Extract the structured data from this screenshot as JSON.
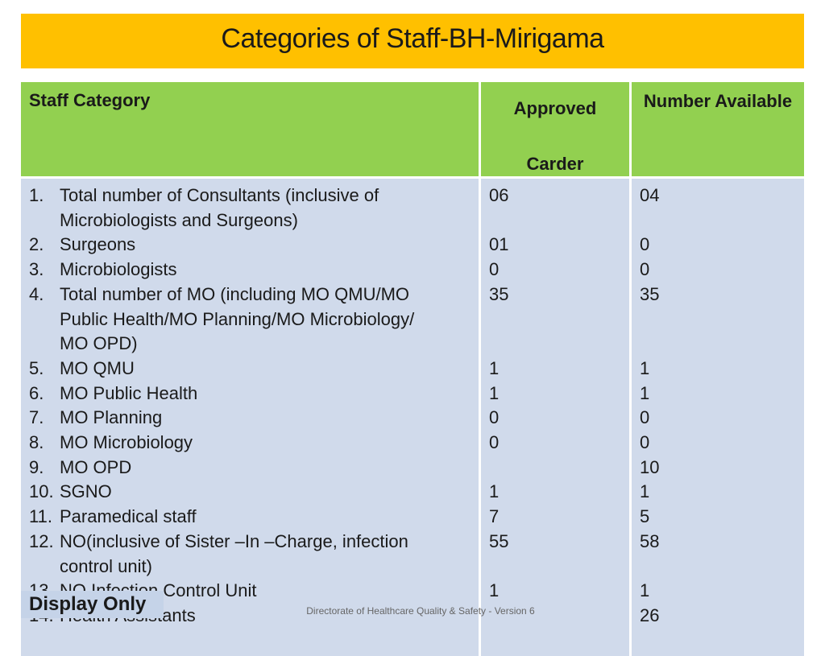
{
  "title": "Categories of Staff-BH-Mirigama",
  "table": {
    "headers": {
      "category": "Staff Category",
      "approved_line1": "Approved",
      "approved_line2": "Carder",
      "available": "Number Available"
    },
    "rows": [
      {
        "num": "1.",
        "lines": [
          "Total number of Consultants (inclusive of",
          "Microbiologists and Surgeons)"
        ],
        "approved": "06",
        "available": "04"
      },
      {
        "num": "2.",
        "lines": [
          "Surgeons"
        ],
        "approved": "01",
        "available": "0"
      },
      {
        "num": "3.",
        "lines": [
          "Microbiologists"
        ],
        "approved": "0",
        "available": "0"
      },
      {
        "num": "4.",
        "lines": [
          "Total number of MO (including MO QMU/MO",
          "Public Health/MO Planning/MO Microbiology/",
          "MO OPD)"
        ],
        "approved": "35",
        "available": "35"
      },
      {
        "num": "5.",
        "lines": [
          "MO QMU"
        ],
        "approved": "1",
        "available": "1"
      },
      {
        "num": "6.",
        "lines": [
          "MO Public Health"
        ],
        "approved": "1",
        "available": "1"
      },
      {
        "num": "7.",
        "lines": [
          "MO Planning"
        ],
        "approved": "0",
        "available": "0"
      },
      {
        "num": "8.",
        "lines": [
          "MO Microbiology"
        ],
        "approved": "0",
        "available": "0"
      },
      {
        "num": "9.",
        "lines": [
          "MO OPD"
        ],
        "approved": "",
        "available": "10"
      },
      {
        "num": "10.",
        "lines": [
          "SGNO"
        ],
        "approved": "1",
        "available": "1"
      },
      {
        "num": "11.",
        "lines": [
          "Paramedical staff"
        ],
        "approved": "7",
        "available": "5"
      },
      {
        "num": "12.",
        "lines": [
          "NO(inclusive of Sister –In –Charge, infection",
          "control unit)"
        ],
        "approved": "55",
        "available": "58"
      },
      {
        "num": "13.",
        "lines": [
          "NO Infection Control Unit"
        ],
        "approved": "1",
        "available": "1"
      },
      {
        "num": "14.",
        "lines": [
          "Health Assistants"
        ],
        "approved": "",
        "available": "26"
      }
    ]
  },
  "footer": "Directorate of Healthcare Quality & Safety - Version 6",
  "badge": "Display Only",
  "colors": {
    "title_bg": "#FFC000",
    "header_bg": "#92D050",
    "body_bg": "#D0DAEB",
    "badge_bg": "#C5D3E8"
  }
}
